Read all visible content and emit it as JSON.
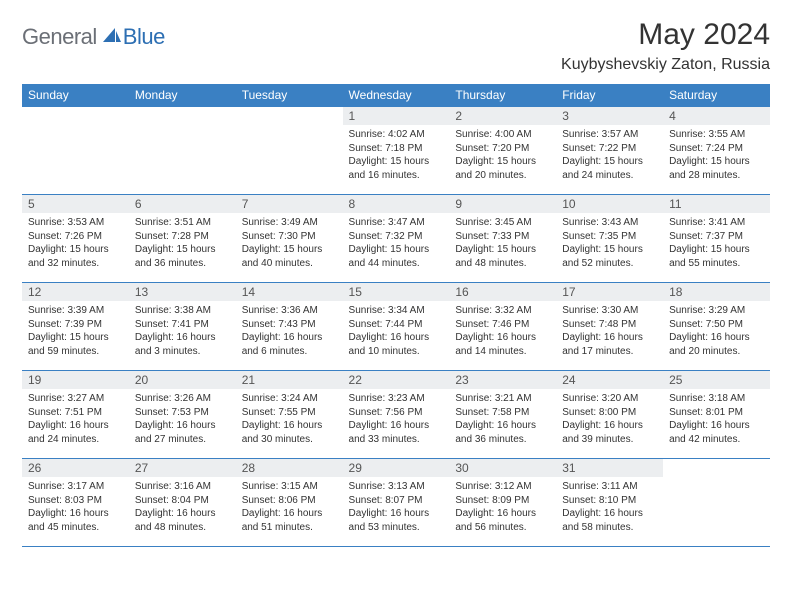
{
  "logo": {
    "general": "General",
    "blue": "Blue"
  },
  "title": "May 2024",
  "location": "Kuybyshevskiy Zaton, Russia",
  "colors": {
    "header_bg": "#3a80c3",
    "header_text": "#ffffff",
    "daynum_bg": "#eceef0",
    "border": "#3a80c3",
    "logo_gray": "#6b6f76",
    "logo_blue": "#2d6fb3"
  },
  "weekdays": [
    "Sunday",
    "Monday",
    "Tuesday",
    "Wednesday",
    "Thursday",
    "Friday",
    "Saturday"
  ],
  "weeks": [
    [
      null,
      null,
      null,
      {
        "n": "1",
        "sunrise": "4:02 AM",
        "sunset": "7:18 PM",
        "dl": "15 hours and 16 minutes."
      },
      {
        "n": "2",
        "sunrise": "4:00 AM",
        "sunset": "7:20 PM",
        "dl": "15 hours and 20 minutes."
      },
      {
        "n": "3",
        "sunrise": "3:57 AM",
        "sunset": "7:22 PM",
        "dl": "15 hours and 24 minutes."
      },
      {
        "n": "4",
        "sunrise": "3:55 AM",
        "sunset": "7:24 PM",
        "dl": "15 hours and 28 minutes."
      }
    ],
    [
      {
        "n": "5",
        "sunrise": "3:53 AM",
        "sunset": "7:26 PM",
        "dl": "15 hours and 32 minutes."
      },
      {
        "n": "6",
        "sunrise": "3:51 AM",
        "sunset": "7:28 PM",
        "dl": "15 hours and 36 minutes."
      },
      {
        "n": "7",
        "sunrise": "3:49 AM",
        "sunset": "7:30 PM",
        "dl": "15 hours and 40 minutes."
      },
      {
        "n": "8",
        "sunrise": "3:47 AM",
        "sunset": "7:32 PM",
        "dl": "15 hours and 44 minutes."
      },
      {
        "n": "9",
        "sunrise": "3:45 AM",
        "sunset": "7:33 PM",
        "dl": "15 hours and 48 minutes."
      },
      {
        "n": "10",
        "sunrise": "3:43 AM",
        "sunset": "7:35 PM",
        "dl": "15 hours and 52 minutes."
      },
      {
        "n": "11",
        "sunrise": "3:41 AM",
        "sunset": "7:37 PM",
        "dl": "15 hours and 55 minutes."
      }
    ],
    [
      {
        "n": "12",
        "sunrise": "3:39 AM",
        "sunset": "7:39 PM",
        "dl": "15 hours and 59 minutes."
      },
      {
        "n": "13",
        "sunrise": "3:38 AM",
        "sunset": "7:41 PM",
        "dl": "16 hours and 3 minutes."
      },
      {
        "n": "14",
        "sunrise": "3:36 AM",
        "sunset": "7:43 PM",
        "dl": "16 hours and 6 minutes."
      },
      {
        "n": "15",
        "sunrise": "3:34 AM",
        "sunset": "7:44 PM",
        "dl": "16 hours and 10 minutes."
      },
      {
        "n": "16",
        "sunrise": "3:32 AM",
        "sunset": "7:46 PM",
        "dl": "16 hours and 14 minutes."
      },
      {
        "n": "17",
        "sunrise": "3:30 AM",
        "sunset": "7:48 PM",
        "dl": "16 hours and 17 minutes."
      },
      {
        "n": "18",
        "sunrise": "3:29 AM",
        "sunset": "7:50 PM",
        "dl": "16 hours and 20 minutes."
      }
    ],
    [
      {
        "n": "19",
        "sunrise": "3:27 AM",
        "sunset": "7:51 PM",
        "dl": "16 hours and 24 minutes."
      },
      {
        "n": "20",
        "sunrise": "3:26 AM",
        "sunset": "7:53 PM",
        "dl": "16 hours and 27 minutes."
      },
      {
        "n": "21",
        "sunrise": "3:24 AM",
        "sunset": "7:55 PM",
        "dl": "16 hours and 30 minutes."
      },
      {
        "n": "22",
        "sunrise": "3:23 AM",
        "sunset": "7:56 PM",
        "dl": "16 hours and 33 minutes."
      },
      {
        "n": "23",
        "sunrise": "3:21 AM",
        "sunset": "7:58 PM",
        "dl": "16 hours and 36 minutes."
      },
      {
        "n": "24",
        "sunrise": "3:20 AM",
        "sunset": "8:00 PM",
        "dl": "16 hours and 39 minutes."
      },
      {
        "n": "25",
        "sunrise": "3:18 AM",
        "sunset": "8:01 PM",
        "dl": "16 hours and 42 minutes."
      }
    ],
    [
      {
        "n": "26",
        "sunrise": "3:17 AM",
        "sunset": "8:03 PM",
        "dl": "16 hours and 45 minutes."
      },
      {
        "n": "27",
        "sunrise": "3:16 AM",
        "sunset": "8:04 PM",
        "dl": "16 hours and 48 minutes."
      },
      {
        "n": "28",
        "sunrise": "3:15 AM",
        "sunset": "8:06 PM",
        "dl": "16 hours and 51 minutes."
      },
      {
        "n": "29",
        "sunrise": "3:13 AM",
        "sunset": "8:07 PM",
        "dl": "16 hours and 53 minutes."
      },
      {
        "n": "30",
        "sunrise": "3:12 AM",
        "sunset": "8:09 PM",
        "dl": "16 hours and 56 minutes."
      },
      {
        "n": "31",
        "sunrise": "3:11 AM",
        "sunset": "8:10 PM",
        "dl": "16 hours and 58 minutes."
      },
      null
    ]
  ]
}
